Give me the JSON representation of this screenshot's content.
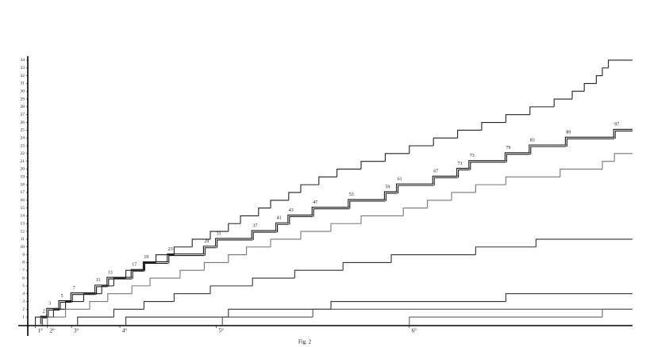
{
  "chart_data": {
    "type": "step",
    "caption": "Fig. 2",
    "xlim": [
      0,
      100
    ],
    "ylim": [
      0,
      34.5
    ],
    "yticks": [
      1,
      2,
      3,
      4,
      5,
      6,
      7,
      8,
      9,
      10,
      11,
      12,
      13,
      14,
      15,
      16,
      17,
      18,
      19,
      20,
      21,
      22,
      23,
      24,
      25,
      26,
      27,
      28,
      29,
      30,
      31,
      32,
      33,
      34
    ],
    "xticks": [
      {
        "value": 1,
        "label": "1°"
      },
      {
        "value": 3,
        "label": "2°"
      },
      {
        "value": 7,
        "label": "3°"
      },
      {
        "value": 15,
        "label": "4°"
      },
      {
        "value": 31,
        "label": "5°"
      },
      {
        "value": 63,
        "label": "6°"
      }
    ],
    "series": [
      {
        "color": "#1a1a1a",
        "double": true,
        "labeled": true,
        "x": [
          2,
          3,
          5,
          7,
          11,
          13,
          17,
          19,
          23,
          29,
          31,
          37,
          41,
          43,
          47,
          53,
          59,
          61,
          67,
          71,
          73,
          79,
          83,
          89,
          97
        ],
        "values": [
          1,
          2,
          3,
          4,
          5,
          6,
          7,
          8,
          9,
          10,
          11,
          12,
          13,
          14,
          15,
          16,
          17,
          18,
          19,
          20,
          21,
          22,
          23,
          24,
          25
        ]
      },
      {
        "color": "#222222",
        "x": [
          1,
          4,
          6,
          9,
          12,
          14,
          16,
          19,
          21,
          24,
          27,
          30,
          33,
          35,
          38,
          40,
          43,
          45,
          48,
          51,
          55,
          59,
          63,
          67,
          71,
          75,
          79,
          83,
          87,
          90,
          92,
          94,
          95,
          96
        ],
        "values": [
          1,
          2,
          3,
          4,
          5,
          6,
          7,
          8,
          9,
          10,
          11,
          12,
          13,
          14,
          15,
          16,
          17,
          18,
          19,
          20,
          21,
          22,
          23,
          24,
          25,
          26,
          27,
          28,
          29,
          30,
          31,
          32,
          33,
          34
        ]
      },
      {
        "color": "#777777",
        "x": [
          3,
          6,
          10,
          13,
          17,
          20,
          25,
          29,
          33,
          36,
          40,
          45,
          50,
          55,
          62,
          66,
          70,
          74,
          79,
          88,
          95,
          97
        ],
        "values": [
          1,
          2,
          3,
          4,
          5,
          6,
          7,
          8,
          9,
          10,
          11,
          12,
          13,
          14,
          15,
          16,
          17,
          18,
          19,
          20,
          21,
          22
        ]
      },
      {
        "color": "#333333",
        "x": [
          8,
          14,
          19,
          24,
          30,
          37,
          44,
          52,
          60,
          74,
          84
        ],
        "values": [
          1,
          2,
          3,
          4,
          5,
          6,
          7,
          8,
          9,
          10,
          11
        ]
      },
      {
        "color": "#333333",
        "x": [
          16,
          33,
          50,
          79
        ],
        "values": [
          1,
          2,
          3,
          4
        ]
      },
      {
        "color": "#555555",
        "x": [
          32,
          47
        ],
        "values": [
          1,
          2
        ]
      },
      {
        "color": "#666666",
        "x": [
          63,
          95
        ],
        "values": [
          1,
          2
        ]
      }
    ]
  }
}
